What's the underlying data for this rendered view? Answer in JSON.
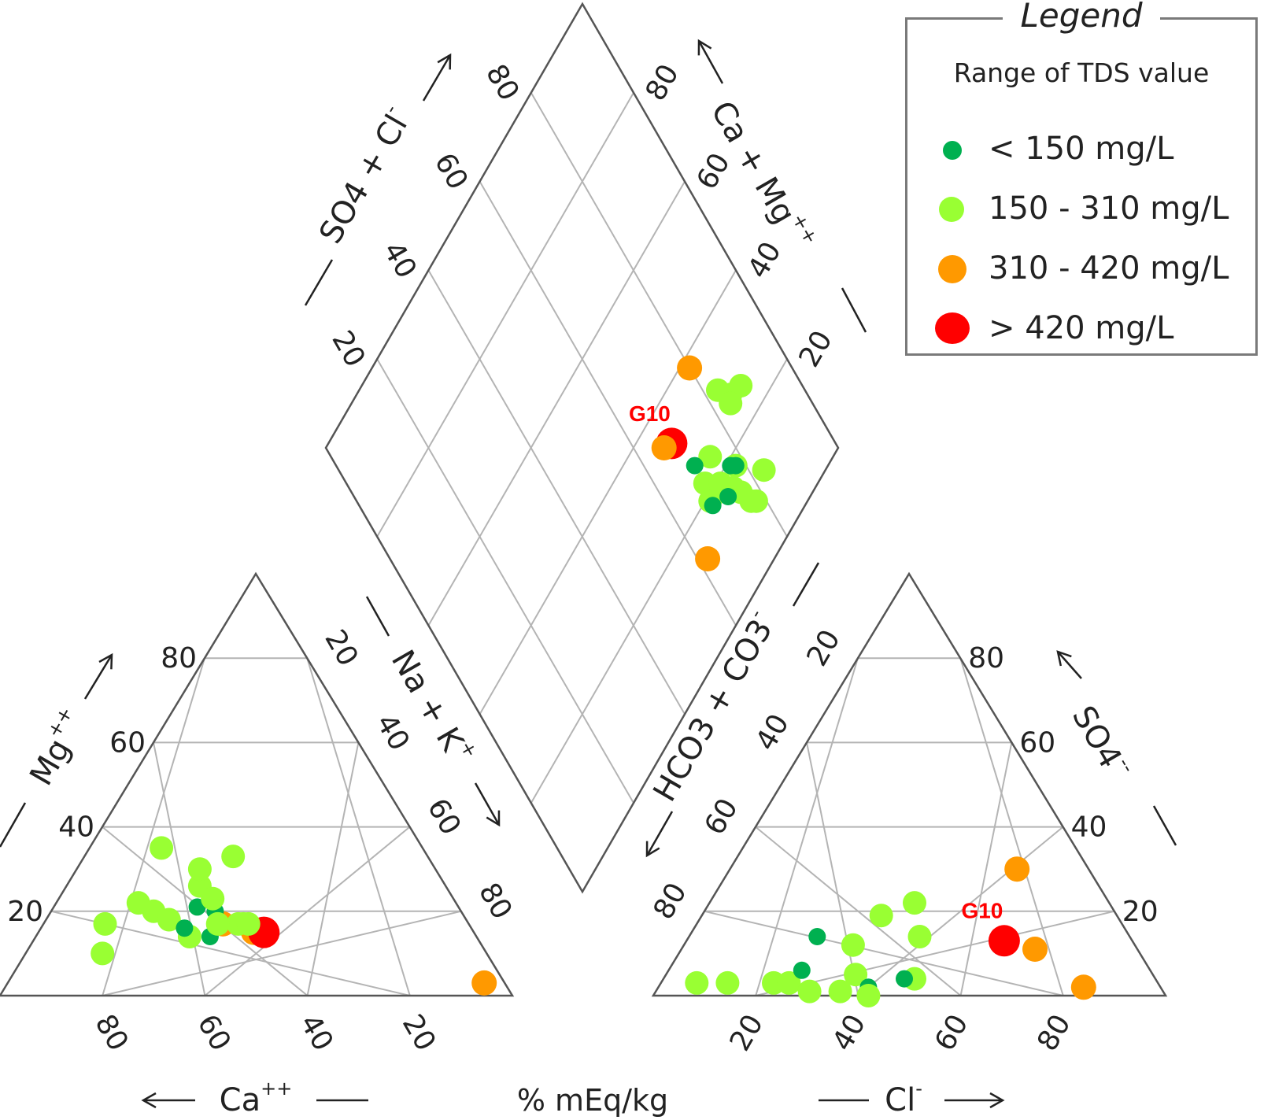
{
  "chart_data": {
    "type": "scatter",
    "subtype": "piper-diagram",
    "unit_label": "% mEq/kg",
    "colors": {
      "lt150": "#00b050",
      "150_310": "#99ff33",
      "310_420": "#ff9900",
      "gt420": "#ff0000"
    },
    "ticks": [
      "20",
      "40",
      "60",
      "80"
    ],
    "axes": {
      "ca": {
        "label": "Ca",
        "sup": "++"
      },
      "mg": {
        "label": "Mg",
        "sup": "++"
      },
      "nak": {
        "label": "Na + K",
        "sup": "+"
      },
      "cl": {
        "label": "Cl",
        "sup": "-"
      },
      "so4": {
        "label": "SO4",
        "sup": "--"
      },
      "hco3": {
        "label": "HCO3 + CO3",
        "sup": "-"
      },
      "so4cl": {
        "label": "SO4 + Cl",
        "sup": "-"
      },
      "camg": {
        "label": "Ca + Mg",
        "sup": "++"
      }
    },
    "legend": {
      "title": "Legend",
      "subtitle": "Range of TDS value",
      "items": [
        {
          "label": "< 150 mg/L",
          "color_key": "lt150"
        },
        {
          "label": "150 - 310 mg/L",
          "color_key": "150_310"
        },
        {
          "label": "310 - 420 mg/L",
          "color_key": "310_420"
        },
        {
          "label": "> 420 mg/L",
          "color_key": "gt420"
        }
      ]
    },
    "annotations": [
      {
        "text": "G10",
        "plot": "diamond"
      },
      {
        "text": "G10",
        "plot": "anion"
      }
    ],
    "cation_points": [
      {
        "mg": 17,
        "na": 39,
        "class": "150_310"
      },
      {
        "mg": 17,
        "na": 35,
        "class": "310_420"
      },
      {
        "mg": 15,
        "na": 42,
        "class": "310_420"
      },
      {
        "mg": 15,
        "na": 44,
        "class": "gt420"
      },
      {
        "mg": 21,
        "na": 28,
        "class": "lt150"
      },
      {
        "mg": 20,
        "na": 32,
        "class": "lt150"
      },
      {
        "mg": 17,
        "na": 38,
        "class": "150_310"
      },
      {
        "mg": 26,
        "na": 26,
        "class": "150_310"
      },
      {
        "mg": 30,
        "na": 24,
        "class": "150_310"
      },
      {
        "mg": 35,
        "na": 14,
        "class": "150_310"
      },
      {
        "mg": 22,
        "na": 16,
        "class": "150_310"
      },
      {
        "mg": 20,
        "na": 20,
        "class": "150_310"
      },
      {
        "mg": 18,
        "na": 24,
        "class": "150_310"
      },
      {
        "mg": 14,
        "na": 30,
        "class": "150_310"
      },
      {
        "mg": 16,
        "na": 28,
        "class": "lt150"
      },
      {
        "mg": 14,
        "na": 34,
        "class": "lt150"
      },
      {
        "mg": 17,
        "na": 40,
        "class": "150_310"
      },
      {
        "mg": 17,
        "na": 12,
        "class": "150_310"
      },
      {
        "mg": 10,
        "na": 15,
        "class": "150_310"
      },
      {
        "mg": 17,
        "na": 34,
        "class": "150_310"
      },
      {
        "mg": 23,
        "na": 30,
        "class": "150_310"
      },
      {
        "mg": 33,
        "na": 29,
        "class": "150_310"
      },
      {
        "mg": 3,
        "na": 93,
        "class": "310_420"
      }
    ],
    "anion_points": [
      {
        "cl": 7,
        "so4": 3,
        "class": "150_310"
      },
      {
        "cl": 13,
        "so4": 3,
        "class": "150_310"
      },
      {
        "cl": 22,
        "so4": 3,
        "class": "150_310"
      },
      {
        "cl": 25,
        "so4": 3,
        "class": "150_310"
      },
      {
        "cl": 26,
        "so4": 6,
        "class": "lt150"
      },
      {
        "cl": 25,
        "so4": 14,
        "class": "lt150"
      },
      {
        "cl": 33,
        "so4": 12,
        "class": "150_310"
      },
      {
        "cl": 30,
        "so4": 1,
        "class": "150_310"
      },
      {
        "cl": 36,
        "so4": 1,
        "class": "150_310"
      },
      {
        "cl": 40,
        "so4": 22,
        "class": "150_310"
      },
      {
        "cl": 35,
        "so4": 19,
        "class": "150_310"
      },
      {
        "cl": 37,
        "so4": 5,
        "class": "150_310"
      },
      {
        "cl": 41,
        "so4": 2,
        "class": "lt150"
      },
      {
        "cl": 42,
        "so4": 0,
        "class": "150_310"
      },
      {
        "cl": 45,
        "so4": 14,
        "class": "150_310"
      },
      {
        "cl": 49,
        "so4": 4,
        "class": "150_310"
      },
      {
        "cl": 47,
        "so4": 4,
        "class": "lt150"
      },
      {
        "cl": 56,
        "so4": 30,
        "class": "310_420"
      },
      {
        "cl": 62,
        "so4": 13,
        "class": "gt420"
      },
      {
        "cl": 69,
        "so4": 11,
        "class": "310_420"
      },
      {
        "cl": 83,
        "so4": 2,
        "class": "310_420"
      }
    ],
    "diamond_points": [
      {
        "so4cl": 38,
        "camg": 80,
        "class": "310_420"
      },
      {
        "so4cl": 33,
        "camg": 68,
        "class": "gt420"
      },
      {
        "so4cl": 34,
        "camg": 66,
        "class": "310_420"
      },
      {
        "so4cl": 13,
        "camg": 62,
        "class": "310_420"
      },
      {
        "so4cl": 30,
        "camg": 83,
        "class": "150_310"
      },
      {
        "so4cl": 26,
        "camg": 88,
        "class": "150_310"
      },
      {
        "so4cl": 27,
        "camg": 85,
        "class": "150_310"
      },
      {
        "so4cl": 26,
        "camg": 84,
        "class": "150_310"
      },
      {
        "so4cl": 24,
        "camg": 74,
        "class": "150_310"
      },
      {
        "so4cl": 26,
        "camg": 70,
        "class": "lt150"
      },
      {
        "so4cl": 22,
        "camg": 70,
        "class": "150_310"
      },
      {
        "so4cl": 19,
        "camg": 69,
        "class": "150_310"
      },
      {
        "so4cl": 19,
        "camg": 73,
        "class": "150_310"
      },
      {
        "so4cl": 18,
        "camg": 78,
        "class": "150_310"
      },
      {
        "so4cl": 18,
        "camg": 78,
        "class": "lt150"
      },
      {
        "so4cl": 19,
        "camg": 77,
        "class": "lt150"
      },
      {
        "so4cl": 16,
        "camg": 75,
        "class": "150_310"
      },
      {
        "so4cl": 14,
        "camg": 76,
        "class": "150_310"
      },
      {
        "so4cl": 16,
        "camg": 73,
        "class": "lt150"
      },
      {
        "so4cl": 18,
        "camg": 69,
        "class": "lt150"
      },
      {
        "so4cl": 12,
        "camg": 83,
        "class": "150_310"
      },
      {
        "so4cl": 10,
        "camg": 78,
        "class": "150_310"
      },
      {
        "so4cl": 11,
        "camg": 77,
        "class": "150_310"
      }
    ]
  }
}
